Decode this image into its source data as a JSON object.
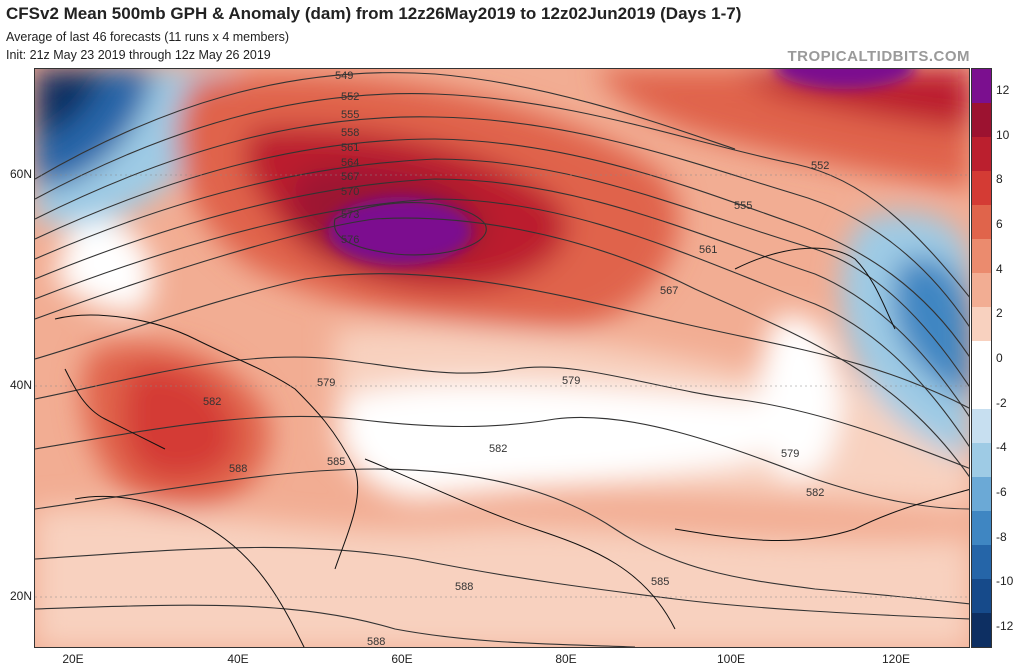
{
  "header": {
    "title": "CFSv2 Mean 500mb GPH & Anomaly (dam) from 12z26May2019 to 12z02Jun2019 (Days 1-7)",
    "subtitle1": "Average of last 46 forecasts (11 runs x 4 members)",
    "subtitle2": "Init: 21z May 23 2019 through 12z May 26 2019",
    "brand": "TROPICALTIDBITS.COM"
  },
  "axes": {
    "lat_labels": [
      "60N",
      "40N",
      "20N"
    ],
    "lon_labels": [
      "20E",
      "40E",
      "60E",
      "80E",
      "100E",
      "120E"
    ]
  },
  "colorbar": {
    "ticks": [
      "12",
      "10",
      "8",
      "6",
      "4",
      "2",
      "0",
      "-2",
      "-4",
      "-6",
      "-8",
      "-10",
      "-12"
    ],
    "colors": [
      "#7b0f8f",
      "#9c1230",
      "#bb1f2e",
      "#d43b34",
      "#e0644b",
      "#eb8b6e",
      "#f2ad93",
      "#f8d1bf",
      "#ffffff",
      "#ffffff",
      "#c7dff0",
      "#9ecbe5",
      "#6ba9d6",
      "#3f86c2",
      "#2565a8",
      "#164a8a",
      "#0d2f62"
    ]
  },
  "contours": {
    "labels": [
      "549",
      "552",
      "555",
      "558",
      "561",
      "564",
      "567",
      "570",
      "573",
      "576",
      "579",
      "582",
      "585",
      "588",
      "552",
      "555",
      "561",
      "567",
      "579",
      "579",
      "582",
      "582",
      "585",
      "588",
      "588"
    ]
  }
}
